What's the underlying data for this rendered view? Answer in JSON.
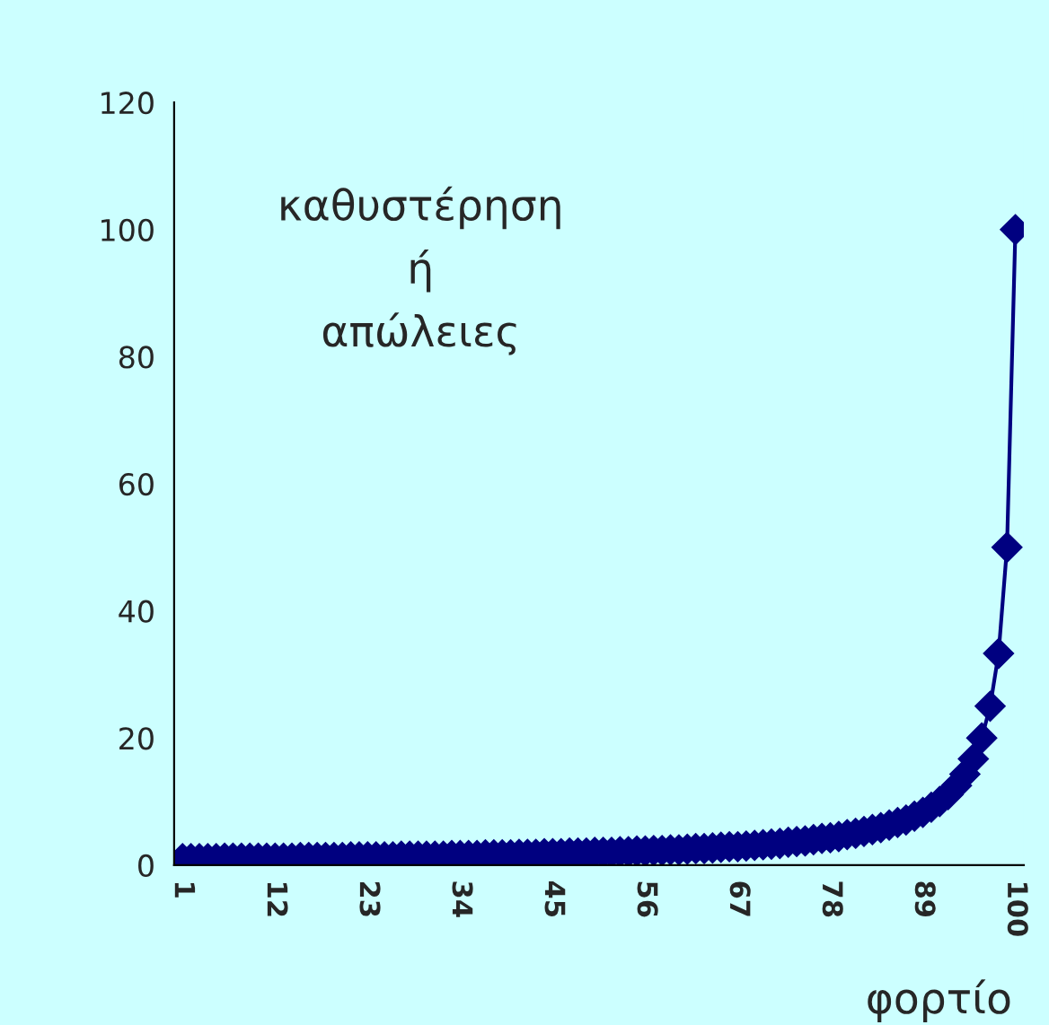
{
  "chart_data": {
    "type": "line",
    "xlabel": "φορτίο",
    "ylabel": "καθυστέρηση\nή\nαπώλειες",
    "categories": [
      "1",
      null,
      null,
      null,
      null,
      null,
      null,
      null,
      null,
      null,
      null,
      "12",
      null,
      null,
      null,
      null,
      null,
      null,
      null,
      null,
      null,
      null,
      "23",
      null,
      null,
      null,
      null,
      null,
      null,
      null,
      null,
      null,
      null,
      "34",
      null,
      null,
      null,
      null,
      null,
      null,
      null,
      null,
      null,
      null,
      "45",
      null,
      null,
      null,
      null,
      null,
      null,
      null,
      null,
      null,
      null,
      "56",
      null,
      null,
      null,
      null,
      null,
      null,
      null,
      null,
      null,
      null,
      "67",
      null,
      null,
      null,
      null,
      null,
      null,
      null,
      null,
      null,
      null,
      "78",
      null,
      null,
      null,
      null,
      null,
      null,
      null,
      null,
      null,
      null,
      "89",
      null,
      null,
      null,
      null,
      null,
      null,
      null,
      null,
      null,
      null,
      "100"
    ],
    "series": [
      {
        "color": "#000080",
        "values": [
          1.0,
          1.0,
          1.0,
          1.0,
          1.0,
          1.1,
          1.1,
          1.1,
          1.1,
          1.1,
          1.1,
          1.1,
          1.1,
          1.1,
          1.2,
          1.2,
          1.2,
          1.2,
          1.2,
          1.2,
          1.3,
          1.3,
          1.3,
          1.3,
          1.3,
          1.3,
          1.4,
          1.4,
          1.4,
          1.4,
          1.4,
          1.4,
          1.5,
          1.5,
          1.5,
          1.5,
          1.6,
          1.6,
          1.6,
          1.6,
          1.7,
          1.7,
          1.7,
          1.8,
          1.8,
          1.8,
          1.9,
          1.9,
          1.9,
          2.0,
          2.0,
          2.0,
          2.1,
          2.1,
          2.2,
          2.2,
          2.3,
          2.3,
          2.4,
          2.4,
          2.5,
          2.6,
          2.6,
          2.7,
          2.8,
          2.9,
          2.9,
          3.0,
          3.1,
          3.2,
          3.3,
          3.4,
          3.6,
          3.7,
          3.8,
          4.0,
          4.2,
          4.3,
          4.5,
          4.8,
          5.0,
          5.3,
          5.6,
          5.9,
          6.3,
          6.7,
          7.1,
          7.7,
          8.3,
          9.1,
          10,
          11.1,
          12.5,
          14.3,
          16.7,
          20,
          25,
          33.3,
          50,
          100
        ]
      }
    ],
    "ylim": [
      0,
      120
    ],
    "yticks": [
      0,
      20,
      40,
      60,
      80,
      100,
      120
    ],
    "marker": "diamond",
    "line_style": "solid",
    "grid": false,
    "legend": false
  }
}
